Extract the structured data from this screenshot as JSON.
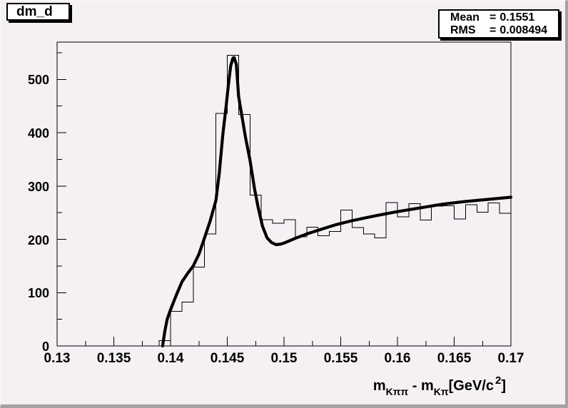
{
  "canvas": {
    "background": "#f4f0f4",
    "border_color": "#a5a1a5",
    "frame_color": "#000000",
    "line_color": "#000000"
  },
  "title_box": {
    "text": "dm_d"
  },
  "stats_box": {
    "rows": [
      {
        "label": "Mean",
        "eq": "=",
        "value": "0.1551"
      },
      {
        "label": "RMS",
        "eq": "=",
        "value": "0.008494"
      }
    ]
  },
  "chart_data": {
    "type": "bar",
    "title": "dm_d",
    "xlabel": "m_Kpipi - m_Kpi [GeV/c^2]",
    "ylabel": "",
    "xlabel_parts": [
      {
        "text": "m",
        "style": "main"
      },
      {
        "text": "Kππ",
        "style": "sub"
      },
      {
        "text": " - m",
        "style": "main"
      },
      {
        "text": "Kπ",
        "style": "sub"
      },
      {
        "text": "[GeV/c",
        "style": "main"
      },
      {
        "text": "2",
        "style": "sup"
      },
      {
        "text": "]",
        "style": "main"
      }
    ],
    "xlim": [
      0.13,
      0.17
    ],
    "ylim": [
      0,
      570
    ],
    "grid": false,
    "x_major_ticks": [
      0.13,
      0.135,
      0.14,
      0.145,
      0.15,
      0.155,
      0.16,
      0.165,
      0.17
    ],
    "x_tick_labels": [
      "0.13",
      "0.135",
      "0.14",
      "0.145",
      "0.15",
      "0.155",
      "0.16",
      "0.165",
      "0.17"
    ],
    "x_minor_offset": 0.0025,
    "y_major_ticks": [
      0,
      100,
      200,
      300,
      400,
      500
    ],
    "y_tick_labels": [
      "0",
      "100",
      "200",
      "300",
      "400",
      "500"
    ],
    "y_minor_offset": 50,
    "histogram": {
      "bin_start": 0.13,
      "bin_width": 0.001,
      "values": [
        0,
        0,
        0,
        0,
        0,
        0,
        0,
        0,
        0,
        10,
        65,
        82,
        148,
        210,
        436,
        545,
        434,
        283,
        237,
        230,
        237,
        205,
        223,
        207,
        215,
        255,
        222,
        210,
        203,
        269,
        242,
        267,
        236,
        262,
        263,
        238,
        265,
        251,
        268,
        249
      ]
    },
    "fit_curve": {
      "x": [
        0.1393,
        0.1395,
        0.1397,
        0.14,
        0.1405,
        0.141,
        0.1415,
        0.142,
        0.1425,
        0.143,
        0.1435,
        0.144,
        0.1443,
        0.1446,
        0.1449,
        0.1451,
        0.1453,
        0.1455,
        0.1456,
        0.1458,
        0.146,
        0.1463,
        0.1466,
        0.147,
        0.1474,
        0.1477,
        0.1481,
        0.1485,
        0.1489,
        0.1493,
        0.1497,
        0.15,
        0.151,
        0.152,
        0.153,
        0.1545,
        0.156,
        0.158,
        0.16,
        0.162,
        0.164,
        0.166,
        0.168,
        0.17
      ],
      "y": [
        0,
        28,
        50,
        68,
        95,
        120,
        136,
        150,
        172,
        203,
        235,
        273,
        325,
        395,
        450,
        490,
        525,
        540,
        541,
        528,
        468,
        430,
        392,
        349,
        295,
        262,
        225,
        203,
        194,
        190,
        191,
        193,
        202,
        210,
        217,
        227,
        235,
        244,
        252,
        259,
        266,
        271,
        275,
        279
      ]
    },
    "stats": {
      "mean": "0.1551",
      "rms": "0.008494"
    }
  }
}
